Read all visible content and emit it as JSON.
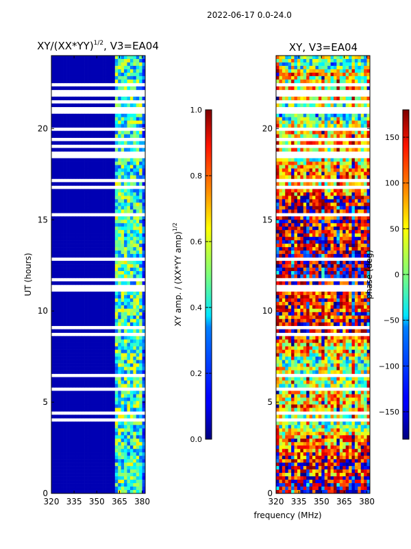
{
  "suptitle": "2022-06-17 0.0-24.0",
  "xlabel_shared": "frequency (MHz)",
  "chart_data": [
    {
      "type": "heatmap",
      "title_main": "XY/(XX*YY)",
      "title_sup": "1/2",
      "title_suffix": ", V3=EA04",
      "ylabel": "UT (hours)",
      "xlim": [
        320,
        382
      ],
      "ylim": [
        0,
        24
      ],
      "x_ticks": [
        320,
        335,
        350,
        365,
        380
      ],
      "y_ticks": [
        0,
        5,
        10,
        15,
        20
      ],
      "colorbar": {
        "label_main": "XY amp. / (XX*YY amp)",
        "label_sup": "1/2",
        "range": [
          0.0,
          1.0
        ],
        "ticks": [
          "0.0",
          "0.2",
          "0.4",
          "0.6",
          "0.8",
          "1.0"
        ],
        "tick_values": [
          0.0,
          0.2,
          0.4,
          0.6,
          0.8,
          1.0
        ]
      }
    },
    {
      "type": "heatmap",
      "title": "XY, V3=EA04",
      "xlim": [
        320,
        382
      ],
      "ylim": [
        0,
        24
      ],
      "x_ticks": [
        320,
        335,
        350,
        365,
        380
      ],
      "y_ticks": [
        0,
        5,
        10,
        15,
        20
      ],
      "colorbar": {
        "label": "phase (deg)",
        "range": [
          -180,
          180
        ],
        "ticks": [
          "150",
          "100",
          "50",
          "0",
          "−50",
          "−100",
          "−150"
        ],
        "tick_values": [
          150,
          100,
          50,
          0,
          -50,
          -100,
          -150
        ]
      }
    }
  ]
}
